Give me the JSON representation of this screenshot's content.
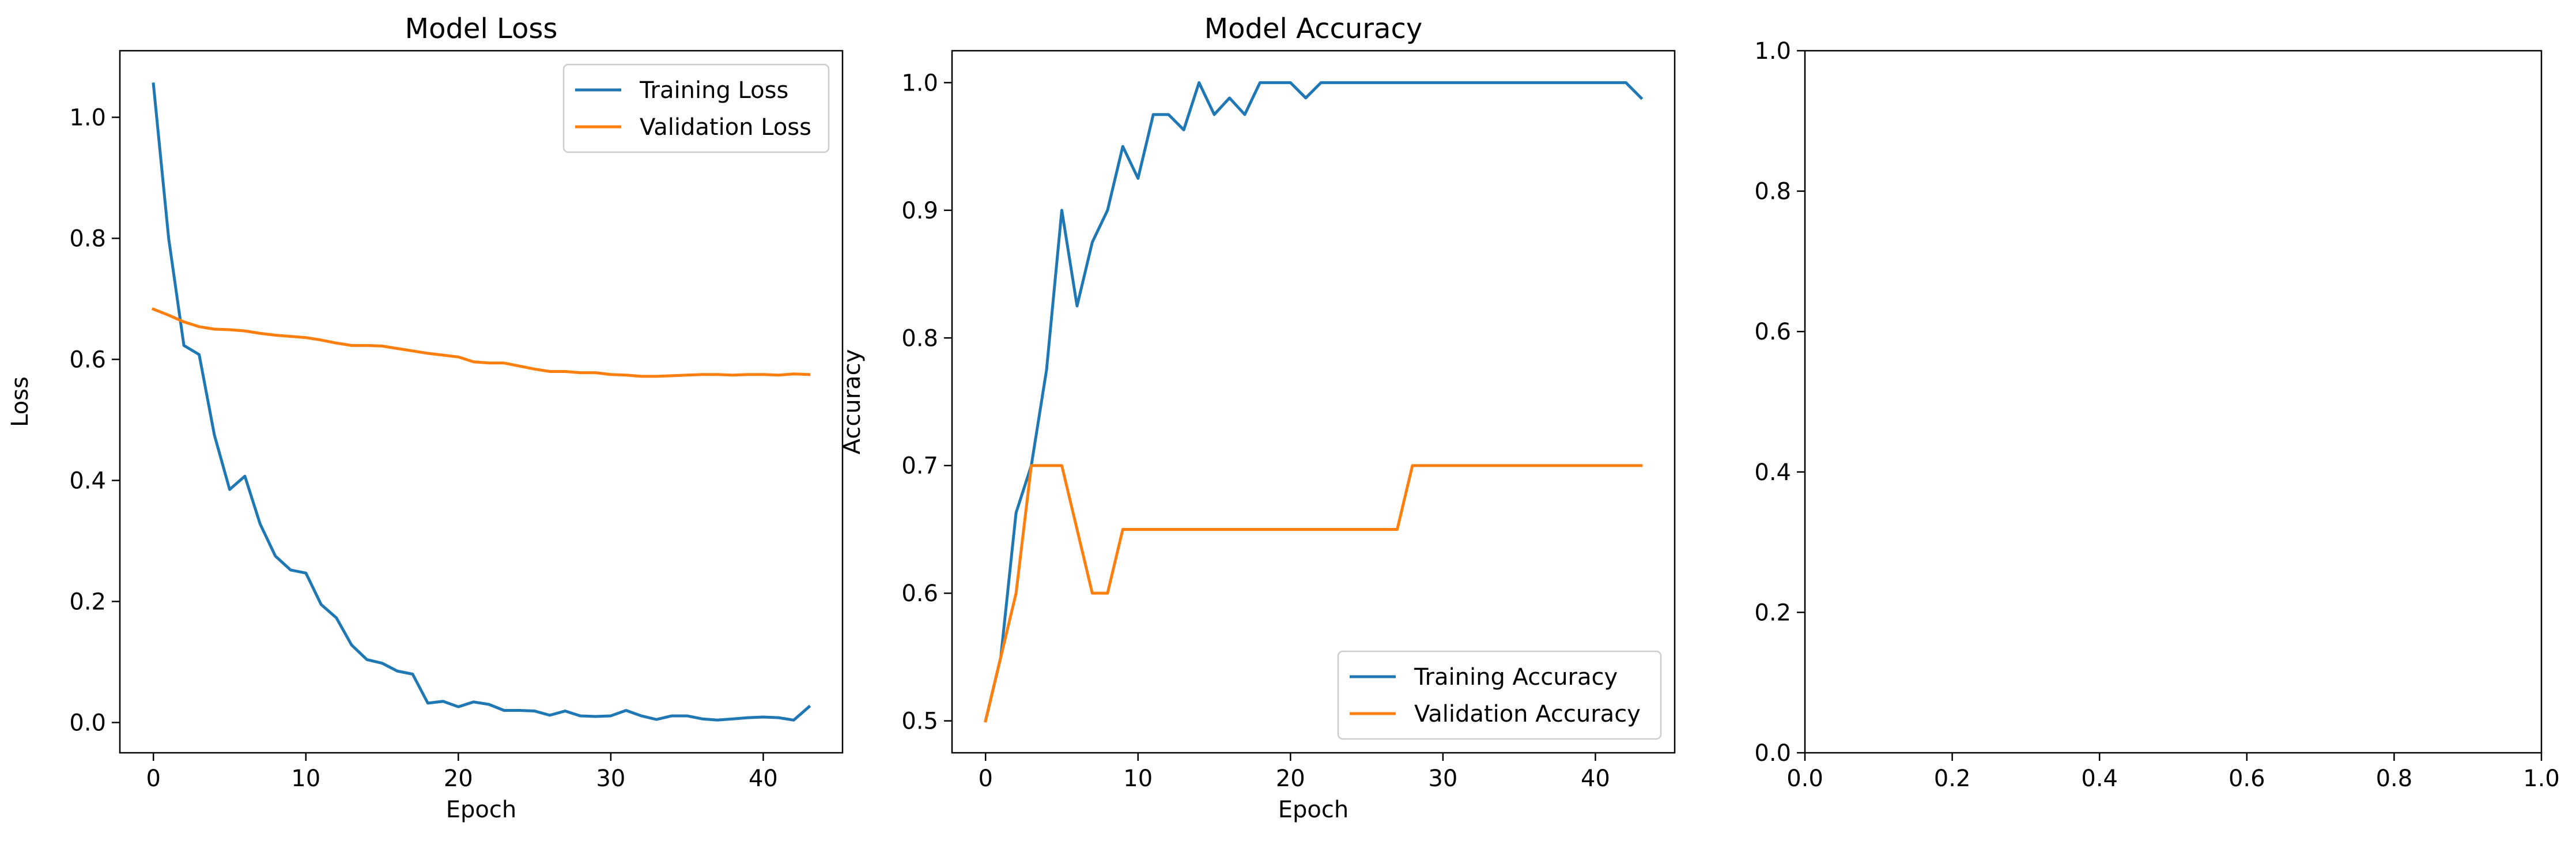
{
  "chart_data": [
    {
      "type": "line",
      "title": "Model Loss",
      "xlabel": "Epoch",
      "ylabel": "Loss",
      "xlim": [
        -2.2,
        45.2
      ],
      "ylim": [
        -0.05,
        1.11
      ],
      "xticks": [
        0,
        10,
        20,
        30,
        40
      ],
      "yticks": [
        0.0,
        0.2,
        0.4,
        0.6,
        0.8,
        1.0
      ],
      "legend_position": "upper-right",
      "grid": false,
      "x": [
        0,
        1,
        2,
        3,
        4,
        5,
        6,
        7,
        8,
        9,
        10,
        11,
        12,
        13,
        14,
        15,
        16,
        17,
        18,
        19,
        20,
        21,
        22,
        23,
        24,
        25,
        26,
        27,
        28,
        29,
        30,
        31,
        32,
        33,
        34,
        35,
        36,
        37,
        38,
        39,
        40,
        41,
        42,
        43
      ],
      "series": [
        {
          "name": "Training Loss",
          "color": "#1f77b4",
          "values": [
            1.055,
            0.8,
            0.623,
            0.608,
            0.475,
            0.385,
            0.407,
            0.328,
            0.275,
            0.252,
            0.247,
            0.195,
            0.173,
            0.128,
            0.104,
            0.098,
            0.085,
            0.08,
            0.032,
            0.035,
            0.026,
            0.034,
            0.03,
            0.02,
            0.02,
            0.019,
            0.012,
            0.019,
            0.011,
            0.01,
            0.011,
            0.02,
            0.011,
            0.005,
            0.011,
            0.011,
            0.006,
            0.004,
            0.006,
            0.008,
            0.009,
            0.008,
            0.004,
            0.026
          ]
        },
        {
          "name": "Validation Loss",
          "color": "#ff7f0e",
          "values": [
            0.683,
            0.673,
            0.662,
            0.654,
            0.65,
            0.649,
            0.647,
            0.643,
            0.64,
            0.638,
            0.636,
            0.632,
            0.627,
            0.623,
            0.623,
            0.622,
            0.618,
            0.614,
            0.61,
            0.607,
            0.604,
            0.596,
            0.594,
            0.594,
            0.589,
            0.584,
            0.58,
            0.58,
            0.578,
            0.578,
            0.575,
            0.574,
            0.572,
            0.572,
            0.573,
            0.574,
            0.575,
            0.575,
            0.574,
            0.575,
            0.575,
            0.574,
            0.576,
            0.575
          ]
        }
      ]
    },
    {
      "type": "line",
      "title": "Model Accuracy",
      "xlabel": "Epoch",
      "ylabel": "Accuracy",
      "xlim": [
        -2.2,
        45.2
      ],
      "ylim": [
        0.475,
        1.025
      ],
      "xticks": [
        0,
        10,
        20,
        30,
        40
      ],
      "yticks": [
        0.5,
        0.6,
        0.7,
        0.8,
        0.9,
        1.0
      ],
      "legend_position": "lower-right",
      "grid": false,
      "x": [
        0,
        1,
        2,
        3,
        4,
        5,
        6,
        7,
        8,
        9,
        10,
        11,
        12,
        13,
        14,
        15,
        16,
        17,
        18,
        19,
        20,
        21,
        22,
        23,
        24,
        25,
        26,
        27,
        28,
        29,
        30,
        31,
        32,
        33,
        34,
        35,
        36,
        37,
        38,
        39,
        40,
        41,
        42,
        43
      ],
      "series": [
        {
          "name": "Training Accuracy",
          "color": "#1f77b4",
          "values": [
            0.5,
            0.55,
            0.663,
            0.7,
            0.775,
            0.9,
            0.825,
            0.875,
            0.9,
            0.95,
            0.925,
            0.975,
            0.975,
            0.963,
            1.0,
            0.975,
            0.988,
            0.975,
            1.0,
            1.0,
            1.0,
            0.988,
            1.0,
            1.0,
            1.0,
            1.0,
            1.0,
            1.0,
            1.0,
            1.0,
            1.0,
            1.0,
            1.0,
            1.0,
            1.0,
            1.0,
            1.0,
            1.0,
            1.0,
            1.0,
            1.0,
            1.0,
            1.0,
            0.988
          ]
        },
        {
          "name": "Validation Accuracy",
          "color": "#ff7f0e",
          "values": [
            0.5,
            0.55,
            0.6,
            0.7,
            0.7,
            0.7,
            0.65,
            0.6,
            0.6,
            0.65,
            0.65,
            0.65,
            0.65,
            0.65,
            0.65,
            0.65,
            0.65,
            0.65,
            0.65,
            0.65,
            0.65,
            0.65,
            0.65,
            0.65,
            0.65,
            0.65,
            0.65,
            0.65,
            0.7,
            0.7,
            0.7,
            0.7,
            0.7,
            0.7,
            0.7,
            0.7,
            0.7,
            0.7,
            0.7,
            0.7,
            0.7,
            0.7,
            0.7,
            0.7
          ]
        }
      ]
    },
    {
      "type": "line",
      "title": "",
      "xlabel": "",
      "ylabel": "",
      "xlim": [
        0.0,
        1.0
      ],
      "ylim": [
        0.0,
        1.0
      ],
      "xticks": [
        0.0,
        0.2,
        0.4,
        0.6,
        0.8,
        1.0
      ],
      "yticks": [
        0.0,
        0.2,
        0.4,
        0.6,
        0.8,
        1.0
      ],
      "grid": false,
      "series": []
    }
  ]
}
